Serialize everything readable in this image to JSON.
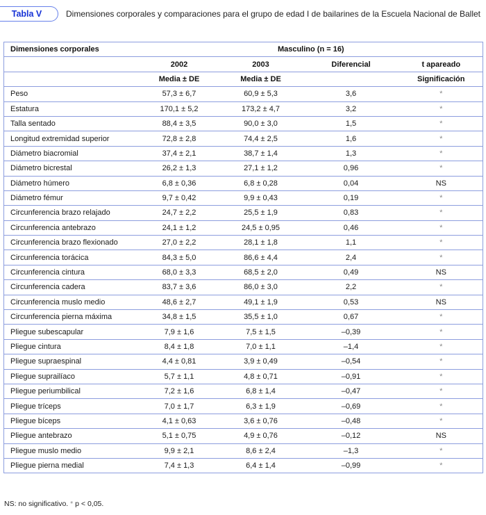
{
  "header": {
    "table_label": "Tabla V",
    "title": "Dimensiones corporales y comparaciones para el grupo de edad I de bailarines de la Escuela Nacional de Ballet"
  },
  "table": {
    "col1_header": "Dimensiones corporales",
    "group_header": "Masculino (n = 16)",
    "subheaders": [
      "2002",
      "2003",
      "Diferencial",
      "t apareado"
    ],
    "stat_headers": [
      "Media ± DE",
      "Media ± DE",
      "",
      "Significación"
    ],
    "rows": [
      {
        "label": "Peso",
        "v2002": "57,3 ± 6,7",
        "v2003": "60,9 ± 5,3",
        "dif": "3,6",
        "sig": "*"
      },
      {
        "label": "Estatura",
        "v2002": "170,1 ± 5,2",
        "v2003": "173,2 ± 4,7",
        "dif": "3,2",
        "sig": "*"
      },
      {
        "label": "Talla sentado",
        "v2002": "88,4 ± 3,5",
        "v2003": "90,0 ± 3,0",
        "dif": "1,5",
        "sig": "*"
      },
      {
        "label": "Longitud extremidad superior",
        "v2002": "72,8 ± 2,8",
        "v2003": "74,4 ± 2,5",
        "dif": "1,6",
        "sig": "*"
      },
      {
        "label": "Diámetro biacromial",
        "v2002": "37,4 ± 2,1",
        "v2003": "38,7 ± 1,4",
        "dif": "1,3",
        "sig": "*"
      },
      {
        "label": "Diámetro bicrestal",
        "v2002": "26,2 ± 1,3",
        "v2003": "27,1 ± 1,2",
        "dif": "0,96",
        "sig": "*"
      },
      {
        "label": "Diámetro húmero",
        "v2002": "6,8 ± 0,36",
        "v2003": "6,8 ± 0,28",
        "dif": "0,04",
        "sig": "NS"
      },
      {
        "label": "Diámetro fémur",
        "v2002": "9,7 ± 0,42",
        "v2003": "9,9 ± 0,43",
        "dif": "0,19",
        "sig": "*"
      },
      {
        "label": "Circunferencia brazo relajado",
        "v2002": "24,7 ± 2,2",
        "v2003": "25,5 ± 1,9",
        "dif": "0,83",
        "sig": "*"
      },
      {
        "label": "Circunferencia antebrazo",
        "v2002": "24,1 ± 1,2",
        "v2003": "24,5 ± 0,95",
        "dif": "0,46",
        "sig": "*"
      },
      {
        "label": "Circunferencia brazo flexionado",
        "v2002": "27,0 ± 2,2",
        "v2003": "28,1 ± 1,8",
        "dif": "1,1",
        "sig": "*"
      },
      {
        "label": "Circunferencia torácica",
        "v2002": "84,3 ± 5,0",
        "v2003": "86,6 ± 4,4",
        "dif": "2,4",
        "sig": "*"
      },
      {
        "label": "Circunferencia cintura",
        "v2002": "68,0 ± 3,3",
        "v2003": "68,5 ± 2,0",
        "dif": "0,49",
        "sig": "NS"
      },
      {
        "label": "Circunferencia cadera",
        "v2002": "83,7 ± 3,6",
        "v2003": "86,0 ± 3,0",
        "dif": "2,2",
        "sig": "*"
      },
      {
        "label": "Circunferencia muslo medio",
        "v2002": "48,6 ± 2,7",
        "v2003": "49,1 ± 1,9",
        "dif": "0,53",
        "sig": "NS"
      },
      {
        "label": "Circunferencia pierna máxima",
        "v2002": "34,8 ± 1,5",
        "v2003": "35,5 ± 1,0",
        "dif": "0,67",
        "sig": "*"
      },
      {
        "label": "Pliegue subescapular",
        "v2002": "7,9 ± 1,6",
        "v2003": "7,5 ± 1,5",
        "dif": "–0,39",
        "sig": "*"
      },
      {
        "label": "Pliegue cintura",
        "v2002": "8,4 ± 1,8",
        "v2003": "7,0 ± 1,1",
        "dif": "–1,4",
        "sig": "*"
      },
      {
        "label": "Pliegue supraespinal",
        "v2002": "4,4 ± 0,81",
        "v2003": "3,9 ± 0,49",
        "dif": "–0,54",
        "sig": "*"
      },
      {
        "label": "Pliegue suprailíaco",
        "v2002": "5,7 ± 1,1",
        "v2003": "4,8 ± 0,71",
        "dif": "–0,91",
        "sig": "*"
      },
      {
        "label": "Pliegue periumbilical",
        "v2002": "7,2 ± 1,6",
        "v2003": "6,8 ± 1,4",
        "dif": "–0,47",
        "sig": "*"
      },
      {
        "label": "Pliegue tríceps",
        "v2002": "7,0 ± 1,7",
        "v2003": "6,3 ± 1,9",
        "dif": "–0,69",
        "sig": "*"
      },
      {
        "label": "Pliegue bíceps",
        "v2002": "4,1 ± 0,63",
        "v2003": "3,6 ± 0,76",
        "dif": "–0,48",
        "sig": "*"
      },
      {
        "label": "Pliegue antebrazo",
        "v2002": "5,1 ± 0,75",
        "v2003": "4,9 ± 0,76",
        "dif": "–0,12",
        "sig": "NS"
      },
      {
        "label": "Pliegue muslo medio",
        "v2002": "9,9 ± 2,1",
        "v2003": "8,6 ± 2,4",
        "dif": "–1,3",
        "sig": "*"
      },
      {
        "label": "Pliegue pierna medial",
        "v2002": "7,4 ± 1,3",
        "v2003": "6,4 ± 1,4",
        "dif": "–0,99",
        "sig": "*"
      }
    ]
  },
  "footnote": {
    "ns_text": "NS: no significativo.",
    "star": "*",
    "p_text": "p < 0,05."
  },
  "colors": {
    "table_border": "#8c9dde",
    "accent_blue": "#1733d6",
    "tab_border": "#6680ea",
    "star_gray": "#8a8a8a"
  }
}
